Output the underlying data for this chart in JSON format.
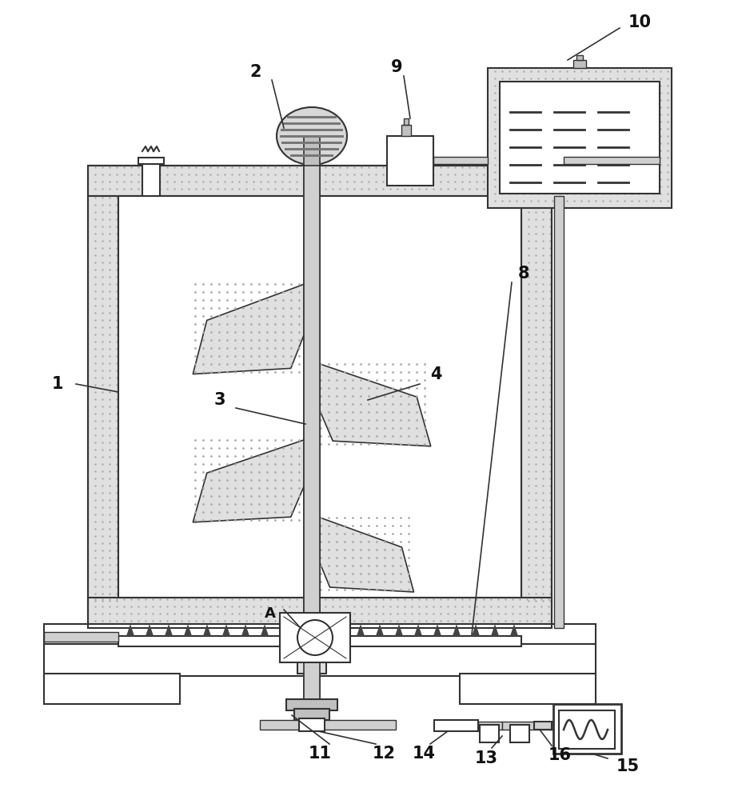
{
  "bg_color": "#ffffff",
  "line_color": "#333333",
  "dot_color": "#aaaaaa",
  "dot_bg": "#e0e0e0",
  "fig_width": 9.18,
  "fig_height": 10.0
}
